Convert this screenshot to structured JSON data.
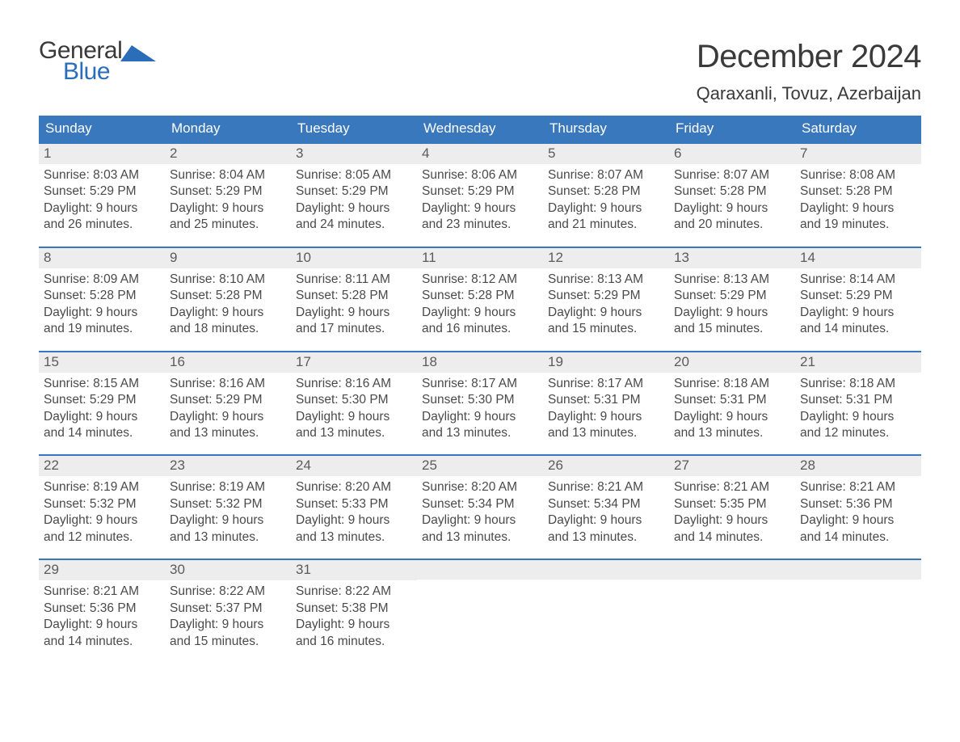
{
  "logo": {
    "text1": "General",
    "text2": "Blue",
    "accent_color": "#2a6db8"
  },
  "title": "December 2024",
  "location": "Qaraxanli, Tovuz, Azerbaijan",
  "colors": {
    "header_bg": "#3a78bd",
    "header_text": "#ffffff",
    "week_border": "#3a78bd",
    "daynum_bg": "#ededed",
    "body_text": "#4a4a4a",
    "title_text": "#3a3a3a",
    "page_bg": "#ffffff"
  },
  "day_headers": [
    "Sunday",
    "Monday",
    "Tuesday",
    "Wednesday",
    "Thursday",
    "Friday",
    "Saturday"
  ],
  "labels": {
    "sunrise": "Sunrise:",
    "sunset": "Sunset:",
    "daylight": "Daylight:"
  },
  "weeks": [
    [
      {
        "n": "1",
        "sunrise": "8:03 AM",
        "sunset": "5:29 PM",
        "daylight": "9 hours and 26 minutes."
      },
      {
        "n": "2",
        "sunrise": "8:04 AM",
        "sunset": "5:29 PM",
        "daylight": "9 hours and 25 minutes."
      },
      {
        "n": "3",
        "sunrise": "8:05 AM",
        "sunset": "5:29 PM",
        "daylight": "9 hours and 24 minutes."
      },
      {
        "n": "4",
        "sunrise": "8:06 AM",
        "sunset": "5:29 PM",
        "daylight": "9 hours and 23 minutes."
      },
      {
        "n": "5",
        "sunrise": "8:07 AM",
        "sunset": "5:28 PM",
        "daylight": "9 hours and 21 minutes."
      },
      {
        "n": "6",
        "sunrise": "8:07 AM",
        "sunset": "5:28 PM",
        "daylight": "9 hours and 20 minutes."
      },
      {
        "n": "7",
        "sunrise": "8:08 AM",
        "sunset": "5:28 PM",
        "daylight": "9 hours and 19 minutes."
      }
    ],
    [
      {
        "n": "8",
        "sunrise": "8:09 AM",
        "sunset": "5:28 PM",
        "daylight": "9 hours and 19 minutes."
      },
      {
        "n": "9",
        "sunrise": "8:10 AM",
        "sunset": "5:28 PM",
        "daylight": "9 hours and 18 minutes."
      },
      {
        "n": "10",
        "sunrise": "8:11 AM",
        "sunset": "5:28 PM",
        "daylight": "9 hours and 17 minutes."
      },
      {
        "n": "11",
        "sunrise": "8:12 AM",
        "sunset": "5:28 PM",
        "daylight": "9 hours and 16 minutes."
      },
      {
        "n": "12",
        "sunrise": "8:13 AM",
        "sunset": "5:29 PM",
        "daylight": "9 hours and 15 minutes."
      },
      {
        "n": "13",
        "sunrise": "8:13 AM",
        "sunset": "5:29 PM",
        "daylight": "9 hours and 15 minutes."
      },
      {
        "n": "14",
        "sunrise": "8:14 AM",
        "sunset": "5:29 PM",
        "daylight": "9 hours and 14 minutes."
      }
    ],
    [
      {
        "n": "15",
        "sunrise": "8:15 AM",
        "sunset": "5:29 PM",
        "daylight": "9 hours and 14 minutes."
      },
      {
        "n": "16",
        "sunrise": "8:16 AM",
        "sunset": "5:29 PM",
        "daylight": "9 hours and 13 minutes."
      },
      {
        "n": "17",
        "sunrise": "8:16 AM",
        "sunset": "5:30 PM",
        "daylight": "9 hours and 13 minutes."
      },
      {
        "n": "18",
        "sunrise": "8:17 AM",
        "sunset": "5:30 PM",
        "daylight": "9 hours and 13 minutes."
      },
      {
        "n": "19",
        "sunrise": "8:17 AM",
        "sunset": "5:31 PM",
        "daylight": "9 hours and 13 minutes."
      },
      {
        "n": "20",
        "sunrise": "8:18 AM",
        "sunset": "5:31 PM",
        "daylight": "9 hours and 13 minutes."
      },
      {
        "n": "21",
        "sunrise": "8:18 AM",
        "sunset": "5:31 PM",
        "daylight": "9 hours and 12 minutes."
      }
    ],
    [
      {
        "n": "22",
        "sunrise": "8:19 AM",
        "sunset": "5:32 PM",
        "daylight": "9 hours and 12 minutes."
      },
      {
        "n": "23",
        "sunrise": "8:19 AM",
        "sunset": "5:32 PM",
        "daylight": "9 hours and 13 minutes."
      },
      {
        "n": "24",
        "sunrise": "8:20 AM",
        "sunset": "5:33 PM",
        "daylight": "9 hours and 13 minutes."
      },
      {
        "n": "25",
        "sunrise": "8:20 AM",
        "sunset": "5:34 PM",
        "daylight": "9 hours and 13 minutes."
      },
      {
        "n": "26",
        "sunrise": "8:21 AM",
        "sunset": "5:34 PM",
        "daylight": "9 hours and 13 minutes."
      },
      {
        "n": "27",
        "sunrise": "8:21 AM",
        "sunset": "5:35 PM",
        "daylight": "9 hours and 14 minutes."
      },
      {
        "n": "28",
        "sunrise": "8:21 AM",
        "sunset": "5:36 PM",
        "daylight": "9 hours and 14 minutes."
      }
    ],
    [
      {
        "n": "29",
        "sunrise": "8:21 AM",
        "sunset": "5:36 PM",
        "daylight": "9 hours and 14 minutes."
      },
      {
        "n": "30",
        "sunrise": "8:22 AM",
        "sunset": "5:37 PM",
        "daylight": "9 hours and 15 minutes."
      },
      {
        "n": "31",
        "sunrise": "8:22 AM",
        "sunset": "5:38 PM",
        "daylight": "9 hours and 16 minutes."
      },
      null,
      null,
      null,
      null
    ]
  ]
}
